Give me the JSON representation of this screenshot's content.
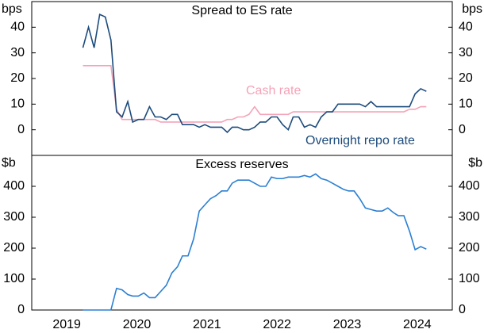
{
  "chart_data": [
    {
      "type": "line",
      "title": "Spread to ES rate",
      "y_label": "bps",
      "xlim": [
        2019,
        2025
      ],
      "ylim": [
        -10,
        50
      ],
      "yticks": [
        0,
        10,
        20,
        30,
        40
      ],
      "x": [
        2019.73,
        2019.81,
        2019.89,
        2019.97,
        2020.05,
        2020.13,
        2020.21,
        2020.29,
        2020.37,
        2020.44,
        2020.52,
        2020.6,
        2020.68,
        2020.76,
        2020.84,
        2020.92,
        2021.0,
        2021.08,
        2021.15,
        2021.23,
        2021.31,
        2021.39,
        2021.47,
        2021.55,
        2021.63,
        2021.71,
        2021.79,
        2021.86,
        2021.94,
        2022.02,
        2022.1,
        2022.18,
        2022.26,
        2022.34,
        2022.42,
        2022.5,
        2022.58,
        2022.66,
        2022.73,
        2022.81,
        2022.89,
        2022.97,
        2023.05,
        2023.13,
        2023.21,
        2023.29,
        2023.37,
        2023.45,
        2023.52,
        2023.6,
        2023.68,
        2023.76,
        2023.84,
        2023.92,
        2024.0,
        2024.08,
        2024.16,
        2024.23,
        2024.31,
        2024.39,
        2024.47,
        2024.55,
        2024.63
      ],
      "series": [
        {
          "name": "Cash rate",
          "color": "#f4a3b8",
          "values": [
            25,
            25,
            25,
            25,
            25,
            25,
            8,
            4,
            4,
            4,
            4,
            4,
            4,
            4,
            3,
            3,
            3,
            3,
            3,
            3,
            3,
            3,
            3,
            3,
            3,
            3,
            4,
            4,
            5,
            5,
            6,
            9,
            6,
            6,
            6,
            6,
            6,
            6,
            7,
            7,
            7,
            7,
            7,
            7,
            7,
            7,
            7,
            7,
            7,
            7,
            7,
            7,
            7,
            7,
            7,
            7,
            7,
            7,
            7,
            8,
            8,
            9,
            9
          ]
        },
        {
          "name": "Overnight repo rate",
          "color": "#1c4b7c",
          "values": [
            32,
            40,
            32,
            45,
            44,
            35,
            7,
            5,
            11,
            3,
            4,
            4,
            9,
            5,
            5,
            4,
            6,
            6,
            2,
            2,
            2,
            1,
            2,
            1,
            1,
            1,
            -1,
            1,
            1,
            0,
            0,
            1,
            3,
            3,
            5,
            5,
            2,
            0,
            5,
            5,
            1,
            2,
            1,
            5,
            7,
            7,
            10,
            10,
            10,
            10,
            10,
            9,
            11,
            9,
            9,
            9,
            9,
            9,
            9,
            9,
            14,
            16,
            15
          ]
        }
      ]
    },
    {
      "type": "line",
      "title": "Excess reserves",
      "y_label": "$b",
      "xlim": [
        2019,
        2025
      ],
      "ylim": [
        0,
        500
      ],
      "yticks": [
        0,
        100,
        200,
        300,
        400
      ],
      "xticks": [
        {
          "value": 2019.5,
          "label": "2019"
        },
        {
          "value": 2020.5,
          "label": "2020"
        },
        {
          "value": 2021.5,
          "label": "2021"
        },
        {
          "value": 2022.5,
          "label": "2022"
        },
        {
          "value": 2023.5,
          "label": "2023"
        },
        {
          "value": 2024.5,
          "label": "2024"
        }
      ],
      "x": [
        2019.73,
        2019.81,
        2019.89,
        2019.97,
        2020.05,
        2020.13,
        2020.21,
        2020.29,
        2020.37,
        2020.44,
        2020.52,
        2020.6,
        2020.68,
        2020.76,
        2020.84,
        2020.92,
        2021.0,
        2021.08,
        2021.15,
        2021.23,
        2021.31,
        2021.39,
        2021.47,
        2021.55,
        2021.63,
        2021.71,
        2021.79,
        2021.86,
        2021.94,
        2022.02,
        2022.1,
        2022.18,
        2022.26,
        2022.34,
        2022.42,
        2022.5,
        2022.58,
        2022.66,
        2022.73,
        2022.81,
        2022.89,
        2022.97,
        2023.05,
        2023.13,
        2023.21,
        2023.29,
        2023.37,
        2023.45,
        2023.52,
        2023.6,
        2023.68,
        2023.76,
        2023.84,
        2023.92,
        2024.0,
        2024.08,
        2024.16,
        2024.23,
        2024.31,
        2024.39,
        2024.47,
        2024.55,
        2024.63
      ],
      "series": [
        {
          "color": "#2b7fd2",
          "values": [
            0,
            0,
            0,
            0,
            0,
            0,
            70,
            65,
            50,
            45,
            45,
            55,
            40,
            40,
            60,
            80,
            120,
            140,
            175,
            175,
            230,
            320,
            340,
            360,
            370,
            385,
            385,
            410,
            420,
            420,
            420,
            410,
            400,
            400,
            430,
            425,
            425,
            430,
            430,
            430,
            435,
            430,
            440,
            425,
            420,
            410,
            400,
            390,
            385,
            385,
            360,
            330,
            325,
            320,
            320,
            330,
            315,
            305,
            305,
            255,
            195,
            205,
            197
          ]
        }
      ]
    }
  ]
}
